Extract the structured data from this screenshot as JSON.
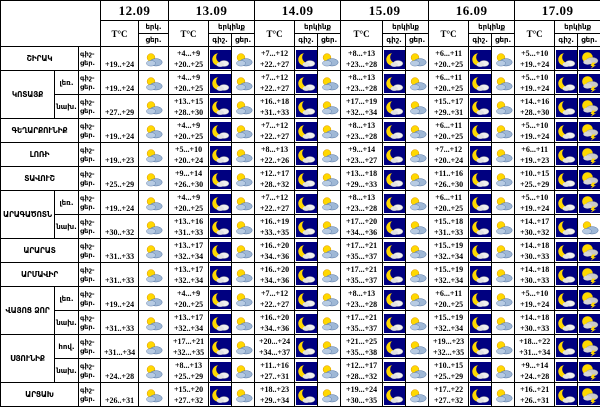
{
  "table": {
    "dates": [
      "12.09",
      "13.09",
      "14.09",
      "15.09",
      "16.09",
      "17.09"
    ],
    "temp_header": "T°C",
    "sky_header": "երկինք",
    "sky_header_short": "երկ.",
    "night_label": "գիշ.",
    "day_label": "ցեր.",
    "row_label_top": "գիշ-",
    "row_label_bottom": "ցեր.",
    "icon_names": {
      "sun-cloud": "partly-cloudy-day-icon",
      "moon-cloud": "partly-cloudy-night-icon",
      "storm": "thunderstorm-icon"
    },
    "colors": {
      "night_bg": "#000080",
      "sun": "#ffd800",
      "sun_edge": "#de9400",
      "cloud_day": "#9fb8d6",
      "cloud_day_light": "#b7cbe3",
      "cloud_day_edge": "#50709e",
      "cloud_storm": "#c9c9c9",
      "grid": "#000000",
      "background": "#ffffff"
    },
    "regions": [
      {
        "name": "ՇԻՐԱԿ",
        "rows": [
          {
            "zone": "",
            "temps": [
              [
                "+19..+24"
              ],
              [
                "+4...+9",
                "+20..+25"
              ],
              [
                "+7...+12",
                "+22..+27"
              ],
              [
                "+8...+13",
                "+23...+28"
              ],
              [
                "+6...+11",
                "+20..+25"
              ],
              [
                "+5...+10",
                "+19..+24"
              ]
            ],
            "icons": [
              [
                "sun-cloud"
              ],
              [
                "moon-cloud",
                "sun-cloud"
              ],
              [
                "moon-cloud",
                "sun-cloud"
              ],
              [
                "moon-cloud",
                "sun-cloud"
              ],
              [
                "moon-cloud",
                "sun-cloud"
              ],
              [
                "moon-cloud",
                "storm"
              ]
            ]
          }
        ]
      },
      {
        "name": "ԿՈՏԱՅՔ",
        "rows": [
          {
            "zone": "լեռ.",
            "temps": [
              [
                "+19..+24"
              ],
              [
                "+4...+9",
                "+20..+25"
              ],
              [
                "+7...+12",
                "+22..+27"
              ],
              [
                "+8...+13",
                "+23...+28"
              ],
              [
                "+6...+11",
                "+20..+25"
              ],
              [
                "+5...+10",
                "+19..+24"
              ]
            ],
            "icons": [
              [
                "sun-cloud"
              ],
              [
                "moon-cloud",
                "sun-cloud"
              ],
              [
                "moon-cloud",
                "sun-cloud"
              ],
              [
                "moon-cloud",
                "sun-cloud"
              ],
              [
                "moon-cloud",
                "sun-cloud"
              ],
              [
                "moon-cloud",
                "storm"
              ]
            ]
          },
          {
            "zone": "նախ.",
            "temps": [
              [
                "+27..+29"
              ],
              [
                "+13..+15",
                "+28..+30"
              ],
              [
                "+16..+18",
                "+31..+33"
              ],
              [
                "+17...+19",
                "+32...+34"
              ],
              [
                "+15..+17",
                "+29..+31"
              ],
              [
                "+14..+16",
                "+28..+30"
              ]
            ],
            "icons": [
              [
                "sun-cloud"
              ],
              [
                "moon-cloud",
                "sun-cloud"
              ],
              [
                "moon-cloud",
                "sun-cloud"
              ],
              [
                "moon-cloud",
                "sun-cloud"
              ],
              [
                "moon-cloud",
                "sun-cloud"
              ],
              [
                "moon-cloud",
                "storm"
              ]
            ]
          }
        ]
      },
      {
        "name": "ԳԵՂԱՐՔՈՒՆԻՔ",
        "rows": [
          {
            "zone": "",
            "temps": [
              [
                "+19..+24"
              ],
              [
                "+4...+9",
                "+20..+25"
              ],
              [
                "+7...+12",
                "+22..+27"
              ],
              [
                "+8...+13",
                "+23...+28"
              ],
              [
                "+6...+11",
                "+20..+25"
              ],
              [
                "+5...+10",
                "+19..+24"
              ]
            ],
            "icons": [
              [
                "sun-cloud"
              ],
              [
                "moon-cloud",
                "sun-cloud"
              ],
              [
                "moon-cloud",
                "sun-cloud"
              ],
              [
                "moon-cloud",
                "sun-cloud"
              ],
              [
                "moon-cloud",
                "sun-cloud"
              ],
              [
                "moon-cloud",
                "storm"
              ]
            ]
          }
        ]
      },
      {
        "name": "ԼՈՌԻ",
        "rows": [
          {
            "zone": "",
            "temps": [
              [
                "+19..+23"
              ],
              [
                "+5...+10",
                "+20..+24"
              ],
              [
                "+8...+13",
                "+22..+26"
              ],
              [
                "+9...+14",
                "+23...+27"
              ],
              [
                "+7...+12",
                "+20..+24"
              ],
              [
                "+6...+11",
                "+19..+23"
              ]
            ],
            "icons": [
              [
                "sun-cloud"
              ],
              [
                "moon-cloud",
                "sun-cloud"
              ],
              [
                "moon-cloud",
                "sun-cloud"
              ],
              [
                "moon-cloud",
                "sun-cloud"
              ],
              [
                "moon-cloud",
                "sun-cloud"
              ],
              [
                "moon-cloud",
                "storm"
              ]
            ]
          }
        ]
      },
      {
        "name": "ՏԱՎՈՒՇ",
        "rows": [
          {
            "zone": "",
            "temps": [
              [
                "+25..+29"
              ],
              [
                "+9...+14",
                "+26..+30"
              ],
              [
                "+12..+17",
                "+28..+32"
              ],
              [
                "+13...+18",
                "+29...+33"
              ],
              [
                "+11..+16",
                "+26..+30"
              ],
              [
                "+10..+15",
                "+25..+29"
              ]
            ],
            "icons": [
              [
                "sun-cloud"
              ],
              [
                "moon-cloud",
                "sun-cloud"
              ],
              [
                "moon-cloud",
                "sun-cloud"
              ],
              [
                "moon-cloud",
                "sun-cloud"
              ],
              [
                "moon-cloud",
                "sun-cloud"
              ],
              [
                "moon-cloud",
                "storm"
              ]
            ]
          }
        ]
      },
      {
        "name": "ԱՐԱԳԱԾՈՏՆ",
        "rows": [
          {
            "zone": "լեռ.",
            "temps": [
              [
                "+19..+24"
              ],
              [
                "+4...+9",
                "+20..+25"
              ],
              [
                "+7...+12",
                "+22..+27"
              ],
              [
                "+8...+13",
                "+23...+28"
              ],
              [
                "+6...+11",
                "+20..+25"
              ],
              [
                "+5...+10",
                "+19..+24"
              ]
            ],
            "icons": [
              [
                "sun-cloud"
              ],
              [
                "moon-cloud",
                "sun-cloud"
              ],
              [
                "moon-cloud",
                "sun-cloud"
              ],
              [
                "moon-cloud",
                "sun-cloud"
              ],
              [
                "moon-cloud",
                "sun-cloud"
              ],
              [
                "moon-cloud",
                "storm"
              ]
            ]
          },
          {
            "zone": "նախ.",
            "temps": [
              [
                "+30..+32"
              ],
              [
                "+13..+16",
                "+31..+33"
              ],
              [
                "+16..+19",
                "+33..+35"
              ],
              [
                "+17...+20",
                "+34...+36"
              ],
              [
                "+15..+18",
                "+31..+33"
              ],
              [
                "+14..+17",
                "+30..+32"
              ]
            ],
            "icons": [
              [
                "sun-cloud"
              ],
              [
                "moon-cloud",
                "sun-cloud"
              ],
              [
                "moon-cloud",
                "sun-cloud"
              ],
              [
                "moon-cloud",
                "sun-cloud"
              ],
              [
                "moon-cloud",
                "sun-cloud"
              ],
              [
                "moon-cloud",
                "sun-cloud"
              ]
            ]
          }
        ]
      },
      {
        "name": "ԱՐԱՐԱՏ",
        "rows": [
          {
            "zone": "",
            "temps": [
              [
                "+31..+33"
              ],
              [
                "+13..+17",
                "+32..+34"
              ],
              [
                "+16..+20",
                "+34..+36"
              ],
              [
                "+17...+21",
                "+35...+37"
              ],
              [
                "+15..+19",
                "+32..+34"
              ],
              [
                "+14..+18",
                "+30..+33"
              ]
            ],
            "icons": [
              [
                "sun-cloud"
              ],
              [
                "moon-cloud",
                "sun-cloud"
              ],
              [
                "moon-cloud",
                "sun-cloud"
              ],
              [
                "moon-cloud",
                "sun-cloud"
              ],
              [
                "moon-cloud",
                "sun-cloud"
              ],
              [
                "moon-cloud",
                "storm"
              ]
            ]
          }
        ]
      },
      {
        "name": "ԱՐՄԱՎԻՐ",
        "rows": [
          {
            "zone": "",
            "temps": [
              [
                "+31..+33"
              ],
              [
                "+13..+17",
                "+32..+34"
              ],
              [
                "+16..+20",
                "+34..+36"
              ],
              [
                "+17...+21",
                "+35...+37"
              ],
              [
                "+15..+19",
                "+32..+34"
              ],
              [
                "+14..+18",
                "+30..+33"
              ]
            ],
            "icons": [
              [
                "sun-cloud"
              ],
              [
                "moon-cloud",
                "sun-cloud"
              ],
              [
                "moon-cloud",
                "sun-cloud"
              ],
              [
                "moon-cloud",
                "sun-cloud"
              ],
              [
                "moon-cloud",
                "sun-cloud"
              ],
              [
                "moon-cloud",
                "storm"
              ]
            ]
          }
        ]
      },
      {
        "name": "ՎԱՅՈՑ ՁՈՐ",
        "rows": [
          {
            "zone": "լեռ.",
            "temps": [
              [
                "+19..+24"
              ],
              [
                "+4...+9",
                "+20..+25"
              ],
              [
                "+7...+12",
                "+22..+27"
              ],
              [
                "+8...+13",
                "+23...+28"
              ],
              [
                "+6...+11",
                "+20..+25"
              ],
              [
                "+5...+10",
                "+19..+24"
              ]
            ],
            "icons": [
              [
                "sun-cloud"
              ],
              [
                "moon-cloud",
                "sun-cloud"
              ],
              [
                "moon-cloud",
                "sun-cloud"
              ],
              [
                "moon-cloud",
                "sun-cloud"
              ],
              [
                "moon-cloud",
                "sun-cloud"
              ],
              [
                "moon-cloud",
                "storm"
              ]
            ]
          },
          {
            "zone": "նախ.",
            "temps": [
              [
                "+31..+33"
              ],
              [
                "+13..+17",
                "+32..+34"
              ],
              [
                "+16..+20",
                "+34..+36"
              ],
              [
                "+17...+21",
                "+35...+37"
              ],
              [
                "+15..+19",
                "+32..+34"
              ],
              [
                "+14..+18",
                "+30..+33"
              ]
            ],
            "icons": [
              [
                "sun-cloud"
              ],
              [
                "moon-cloud",
                "sun-cloud"
              ],
              [
                "moon-cloud",
                "sun-cloud"
              ],
              [
                "moon-cloud",
                "sun-cloud"
              ],
              [
                "moon-cloud",
                "sun-cloud"
              ],
              [
                "moon-cloud",
                "storm"
              ]
            ]
          }
        ]
      },
      {
        "name": "ՍՅՈՒՆԻՔ",
        "rows": [
          {
            "zone": "հով.",
            "temps": [
              [
                "+31...+34"
              ],
              [
                "+17...+21",
                "+32...+35"
              ],
              [
                "+20...+24",
                "+34...+37"
              ],
              [
                "+21...+25",
                "+35...+38"
              ],
              [
                "+19...+23",
                "+32...+35"
              ],
              [
                "+18...+22",
                "+31...+34"
              ]
            ],
            "icons": [
              [
                "sun-cloud"
              ],
              [
                "moon-cloud",
                "sun-cloud"
              ],
              [
                "moon-cloud",
                "sun-cloud"
              ],
              [
                "moon-cloud",
                "sun-cloud"
              ],
              [
                "moon-cloud",
                "sun-cloud"
              ],
              [
                "moon-cloud",
                "storm"
              ]
            ]
          },
          {
            "zone": "նախ.",
            "temps": [
              [
                "+24..+28"
              ],
              [
                "+8...+13",
                "+25..+29"
              ],
              [
                "+11..+16",
                "+27..+31"
              ],
              [
                "+12...+17",
                "+28...+32"
              ],
              [
                "+10..+15",
                "+25..+29"
              ],
              [
                "+9...+14",
                "+24..+28"
              ]
            ],
            "icons": [
              [
                "sun-cloud"
              ],
              [
                "moon-cloud",
                "sun-cloud"
              ],
              [
                "moon-cloud",
                "sun-cloud"
              ],
              [
                "moon-cloud",
                "sun-cloud"
              ],
              [
                "moon-cloud",
                "sun-cloud"
              ],
              [
                "moon-cloud",
                "storm"
              ]
            ]
          }
        ]
      },
      {
        "name": "ԱՐՑԱԽ",
        "rows": [
          {
            "zone": "",
            "temps": [
              [
                "+26..+31"
              ],
              [
                "+15..+20",
                "+27..+32"
              ],
              [
                "+18..+23",
                "+29..+34"
              ],
              [
                "+19...+24",
                "+30...+35"
              ],
              [
                "+17..+22",
                "+27..+32"
              ],
              [
                "+16..+21",
                "+26..+31"
              ]
            ],
            "icons": [
              [
                "sun-cloud"
              ],
              [
                "moon-cloud",
                "sun-cloud"
              ],
              [
                "moon-cloud",
                "sun-cloud"
              ],
              [
                "moon-cloud",
                "sun-cloud"
              ],
              [
                "moon-cloud",
                "sun-cloud"
              ],
              [
                "moon-cloud",
                "storm"
              ]
            ]
          }
        ]
      }
    ]
  }
}
